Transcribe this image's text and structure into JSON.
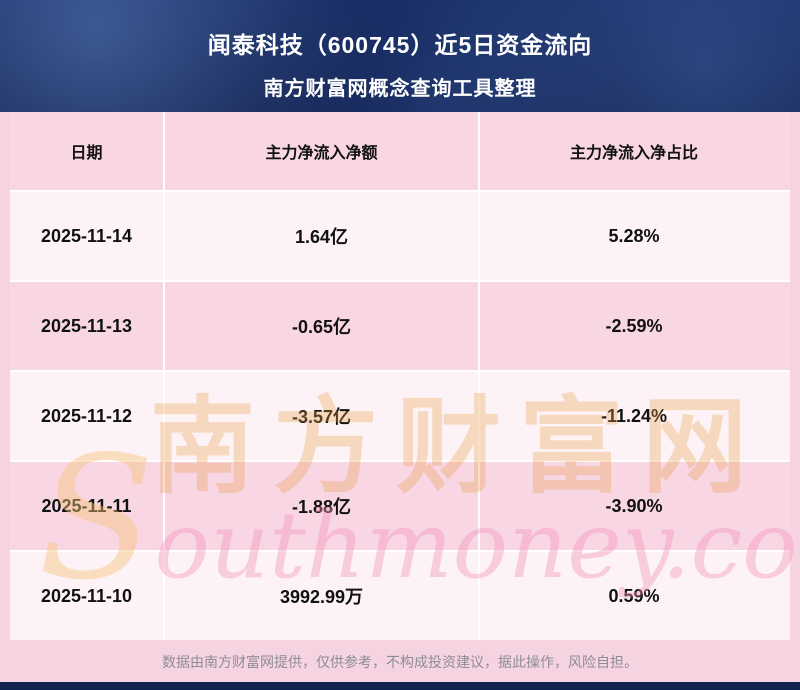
{
  "banner": {
    "title_line1": "闻泰科技（600745）近5日资金流向",
    "title_line2": "南方财富网概念查询工具整理"
  },
  "table": {
    "headers": [
      "日期",
      "主力净流入净额",
      "主力净流入净占比"
    ],
    "rows": [
      {
        "date": "2025-11-14",
        "net_inflow": "1.64亿",
        "net_ratio": "5.28%"
      },
      {
        "date": "2025-11-13",
        "net_inflow": "-0.65亿",
        "net_ratio": "-2.59%"
      },
      {
        "date": "2025-11-12",
        "net_inflow": "-3.57亿",
        "net_ratio": "-11.24%"
      },
      {
        "date": "2025-11-11",
        "net_inflow": "-1.88亿",
        "net_ratio": "-3.90%"
      },
      {
        "date": "2025-11-10",
        "net_inflow": "3992.99万",
        "net_ratio": "0.59%"
      }
    ]
  },
  "watermark": {
    "cn": "南方财富网",
    "en": "Southmoney.com"
  },
  "footer": {
    "disclaimer": "数据由南方财富网提供，仅供参考，不构成投资建议，据此操作，风险自担。"
  },
  "colors": {
    "banner_bg": "#14275c",
    "row_pink": "#f8d6e3",
    "row_light": "#fdf3f7",
    "text": "#111111",
    "footer_text": "#8d8d96"
  },
  "chart_data": {
    "type": "table",
    "title": "闻泰科技（600745）近5日资金流向",
    "columns": [
      "日期",
      "主力净流入净额",
      "主力净流入净占比"
    ],
    "rows": [
      [
        "2025-11-14",
        "1.64亿",
        "5.28%"
      ],
      [
        "2025-11-13",
        "-0.65亿",
        "-2.59%"
      ],
      [
        "2025-11-12",
        "-3.57亿",
        "-11.24%"
      ],
      [
        "2025-11-11",
        "-1.88亿",
        "-3.90%"
      ],
      [
        "2025-11-10",
        "3992.99万",
        "0.59%"
      ]
    ]
  }
}
